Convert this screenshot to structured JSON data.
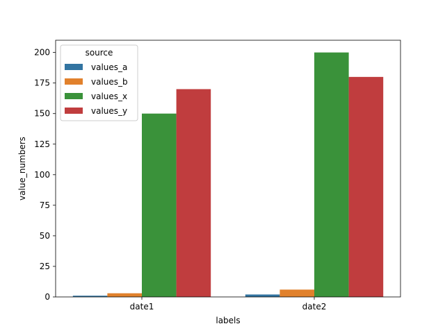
{
  "chart_data": {
    "type": "bar",
    "categories": [
      "date1",
      "date2"
    ],
    "series": [
      {
        "name": "values_a",
        "values": [
          1,
          2
        ],
        "color": "#3274a1"
      },
      {
        "name": "values_b",
        "values": [
          3,
          6
        ],
        "color": "#e1812c"
      },
      {
        "name": "values_x",
        "values": [
          150,
          200
        ],
        "color": "#3a923a"
      },
      {
        "name": "values_y",
        "values": [
          170,
          180
        ],
        "color": "#c03d3e"
      }
    ],
    "xlabel": "labels",
    "ylabel": "value_numbers",
    "ylim": [
      0,
      210
    ],
    "yticks": [
      0,
      25,
      50,
      75,
      100,
      125,
      150,
      175,
      200
    ],
    "legend": {
      "title": "source",
      "placement": "top-left"
    },
    "grid": false
  }
}
